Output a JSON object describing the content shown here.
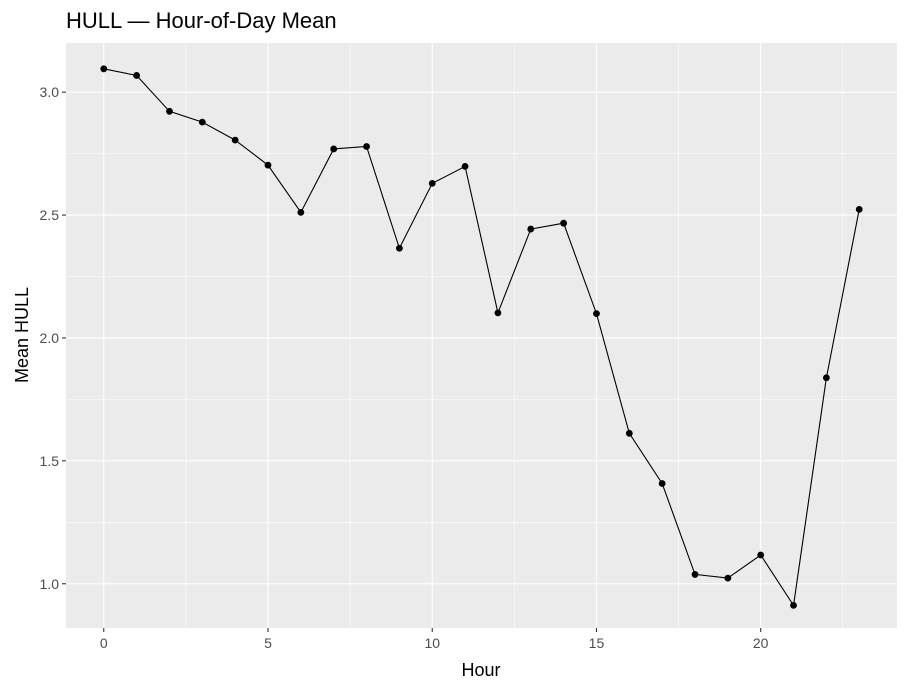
{
  "chart_data": {
    "type": "line",
    "title": "HULL — Hour-of-Day Mean",
    "xlabel": "Hour",
    "ylabel": "Mean HULL",
    "xlim": [
      -1.15,
      24.15
    ],
    "ylim": [
      0.82,
      3.2
    ],
    "x_major_ticks": [
      0,
      5,
      10,
      15,
      20
    ],
    "x_minor_ticks": [
      2.5,
      7.5,
      12.5,
      17.5,
      22.5
    ],
    "y_major_ticks": [
      1.0,
      1.5,
      2.0,
      2.5,
      3.0
    ],
    "y_minor_ticks": [
      1.25,
      1.75,
      2.25,
      2.75
    ],
    "x_tick_labels": [
      "0",
      "5",
      "10",
      "15",
      "20"
    ],
    "y_tick_labels": [
      "1.0",
      "1.5",
      "2.0",
      "2.5",
      "3.0"
    ],
    "grid": true,
    "colors": {
      "panel": "#ebebeb",
      "line": "#000000",
      "point": "#000000"
    },
    "x": [
      0,
      1,
      2,
      3,
      4,
      5,
      6,
      7,
      8,
      9,
      10,
      11,
      12,
      13,
      14,
      15,
      16,
      17,
      18,
      19,
      20,
      21,
      22,
      23
    ],
    "y": [
      3.095,
      3.068,
      2.922,
      2.878,
      2.805,
      2.703,
      2.511,
      2.769,
      2.779,
      2.365,
      2.629,
      2.698,
      2.102,
      2.443,
      2.467,
      2.099,
      1.612,
      1.408,
      1.038,
      1.023,
      1.117,
      0.912,
      1.838,
      2.523
    ]
  }
}
